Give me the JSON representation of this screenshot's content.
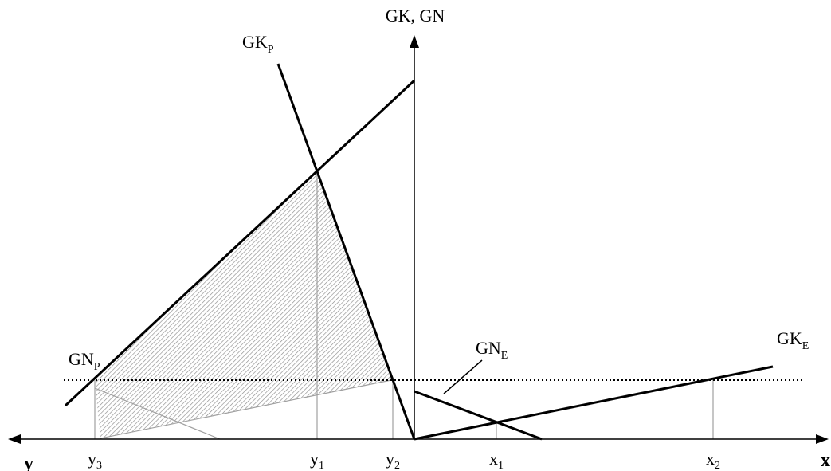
{
  "axes": {
    "vertical_label": "GK, GN",
    "left_label": "y",
    "right_label": "x"
  },
  "curves": {
    "gk_p": {
      "base": "GK",
      "sub": "P"
    },
    "gn_p": {
      "base": "GN",
      "sub": "P"
    },
    "gn_e": {
      "base": "GN",
      "sub": "E"
    },
    "gk_e": {
      "base": "GK",
      "sub": "E"
    }
  },
  "ticks": [
    {
      "base": "y",
      "sub": "3"
    },
    {
      "base": "y",
      "sub": "1"
    },
    {
      "base": "y",
      "sub": "2"
    },
    {
      "base": "x",
      "sub": "1"
    },
    {
      "base": "x",
      "sub": "2"
    }
  ],
  "colors": {
    "line": "#000000",
    "guide": "#a0a0a0",
    "hatch": "#8c8c8c"
  }
}
